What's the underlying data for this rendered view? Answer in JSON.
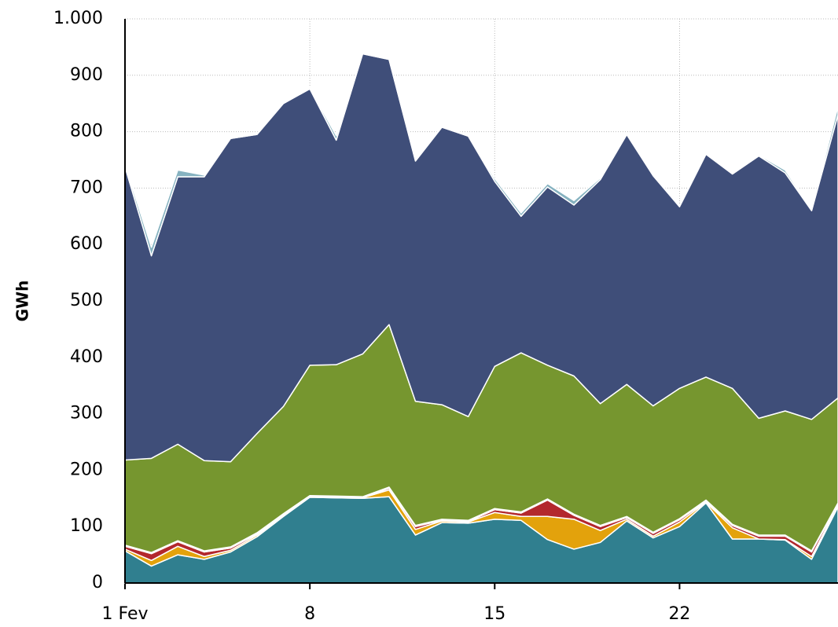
{
  "chart_data": {
    "type": "stacked_area",
    "ylabel": "GWh",
    "x": [
      1,
      2,
      3,
      4,
      5,
      6,
      7,
      8,
      9,
      10,
      11,
      12,
      13,
      14,
      15,
      16,
      17,
      18,
      19,
      20,
      21,
      22,
      23,
      24,
      25,
      26,
      27,
      28
    ],
    "xlim": [
      1,
      28
    ],
    "xticks": [
      {
        "value": 1,
        "label": "1 Fev"
      },
      8,
      15,
      22
    ],
    "ylim": [
      0,
      1000
    ],
    "yticks": [
      0,
      100,
      200,
      300,
      400,
      500,
      600,
      700,
      800,
      900,
      {
        "value": 1000,
        "label": "1.000"
      }
    ],
    "grid": true,
    "series": [
      {
        "color": "#307f8f",
        "values": [
          57,
          30,
          50,
          42,
          55,
          82,
          118,
          152,
          151,
          150,
          153,
          85,
          107,
          106,
          113,
          111,
          77,
          60,
          72,
          110,
          80,
          100,
          142,
          78,
          78,
          76,
          42,
          135
        ]
      },
      {
        "color": "#e3a20c",
        "values": [
          3,
          10,
          15,
          5,
          3,
          3,
          2,
          1,
          1,
          1,
          12,
          10,
          3,
          2,
          12,
          7,
          41,
          53,
          21,
          3,
          3,
          8,
          1,
          20,
          0,
          1,
          5,
          3
        ]
      },
      {
        "color": "#b3282d",
        "values": [
          5,
          12,
          8,
          8,
          4,
          2,
          1,
          0,
          0,
          0,
          3,
          5,
          1,
          1,
          5,
          6,
          29,
          7,
          7,
          3,
          5,
          4,
          2,
          4,
          5,
          6,
          8,
          2
        ]
      },
      {
        "color": "#ffffff",
        "values": [
          2,
          2,
          2,
          2,
          2,
          2,
          2,
          2,
          2,
          2,
          2,
          2,
          2,
          2,
          2,
          2,
          2,
          2,
          2,
          2,
          2,
          2,
          2,
          2,
          2,
          2,
          2,
          2
        ]
      },
      {
        "color": "#76962f",
        "values": [
          151,
          167,
          171,
          160,
          151,
          176,
          190,
          231,
          233,
          253,
          288,
          220,
          203,
          184,
          252,
          282,
          237,
          245,
          216,
          234,
          224,
          231,
          218,
          241,
          207,
          220,
          233,
          186
        ]
      },
      {
        "color": "#3f4e79",
        "values": [
          520,
          359,
          474,
          503,
          573,
          530,
          537,
          490,
          398,
          532,
          470,
          426,
          492,
          497,
          328,
          242,
          316,
          303,
          397,
          443,
          408,
          322,
          395,
          380,
          465,
          422,
          370,
          502
        ]
      },
      {
        "color": "#86b2c0",
        "values": [
          5,
          15,
          12,
          3,
          2,
          2,
          2,
          2,
          8,
          2,
          2,
          3,
          2,
          2,
          5,
          6,
          6,
          8,
          3,
          2,
          2,
          2,
          2,
          2,
          2,
          5,
          2,
          15
        ]
      }
    ]
  }
}
